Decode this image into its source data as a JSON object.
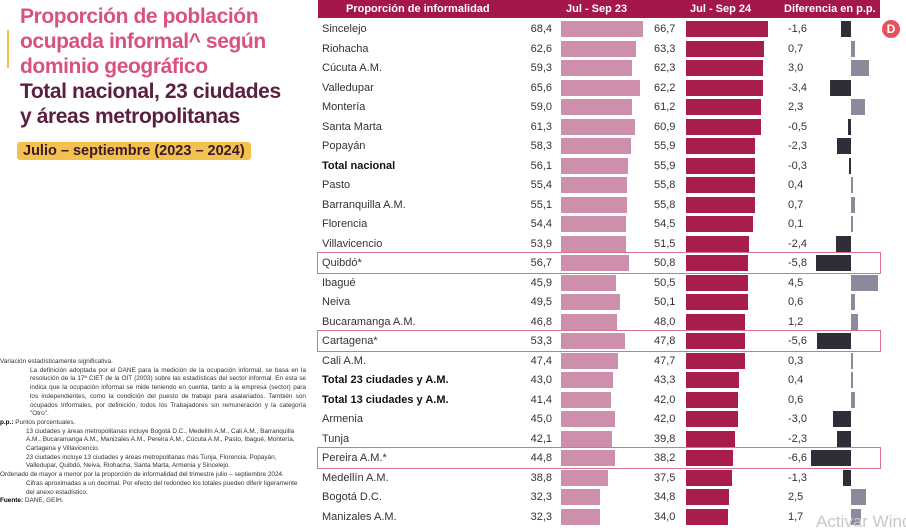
{
  "title": {
    "line1": "Proporción de población",
    "line2": "ocupada informal^ según",
    "line3": "dominio geográfico",
    "line4": "Total nacional, 23 ciudades",
    "line5": "y áreas metropolitanas",
    "period": "Julio – septiembre (2023 – 2024)"
  },
  "notes": [
    "Variación estadísticamente significativa.",
    "La definición adoptada por el DANE para la medición de la ocupación informal, se basa en la resolución de la 17ª CIET de la OIT (2003) sobre las estadísticas del sector informal. En esta se indica que la ocupación informal se mide teniendo en cuenta, tanto a la empresa (sector) para los independientes, como la condición del puesto de trabajo para asalariados. También son ocupados Informales, por definición, todos los Trabajadores sin remuneración y la categoría \"Otro\".",
    "Puntos porcentuales.",
    "13 ciudades y áreas metropolitanas incluye Bogotá D.C., Medellín A.M., Cali A.M., Barranquilla A.M., Bucaramanga A.M., Manizales A.M., Pereira A.M., Cúcuta A.M., Pasto, Ibagué, Montería, Cartagena y Villavicencio.",
    "23 ciudades incluye 13 ciudades y áreas metropolitanas más Tunja, Florencia, Popayán, Valledupar, Quibdó, Neiva, Riohacha, Santa Marta, Armenia y Sincelejo.",
    "Ordenado de mayor a menor por la proporción de informalidad del trimestre julio – septiembre 2024.",
    "Cifras aproximadas a un decimal. Por efecto del redondeo los totales pueden diferir ligeramente del anexo estadístico.",
    "DANE, GEIH."
  ],
  "notes_labels": {
    "pp": "p.p.:",
    "source": "Fuente:"
  },
  "logo_letter": "D",
  "watermark": "Activar Windows",
  "colors": {
    "header": "#a3174b",
    "bar23": "#cd8fac",
    "bar24": "#a81d4b",
    "neg": "#2e2e38",
    "pos": "#8a8a9c",
    "highlight": "#d9728f"
  },
  "chart_data": {
    "type": "table",
    "headers": [
      "Proporción de informalidad",
      "Jul - Sep 23",
      "Jul - Sep 24",
      "Diferencia en p.p."
    ],
    "rows": [
      {
        "name": "Sincelejo",
        "v23": 68.4,
        "v24": 66.7,
        "diff": -1.6
      },
      {
        "name": "Riohacha",
        "v23": 62.6,
        "v24": 63.3,
        "diff": 0.7
      },
      {
        "name": "Cúcuta A.M.",
        "v23": 59.3,
        "v24": 62.3,
        "diff": 3.0
      },
      {
        "name": "Valledupar",
        "v23": 65.6,
        "v24": 62.2,
        "diff": -3.4
      },
      {
        "name": "Montería",
        "v23": 59.0,
        "v24": 61.2,
        "diff": 2.3
      },
      {
        "name": "Santa Marta",
        "v23": 61.3,
        "v24": 60.9,
        "diff": -0.5
      },
      {
        "name": "Popayán",
        "v23": 58.3,
        "v24": 55.9,
        "diff": -2.3
      },
      {
        "name": "Total nacional",
        "v23": 56.1,
        "v24": 55.9,
        "diff": -0.3,
        "bold": true
      },
      {
        "name": "Pasto",
        "v23": 55.4,
        "v24": 55.8,
        "diff": 0.4
      },
      {
        "name": "Barranquilla A.M.",
        "v23": 55.1,
        "v24": 55.8,
        "diff": 0.7
      },
      {
        "name": "Florencia",
        "v23": 54.4,
        "v24": 54.5,
        "diff": 0.1
      },
      {
        "name": "Villavicencio",
        "v23": 53.9,
        "v24": 51.5,
        "diff": -2.4
      },
      {
        "name": "Quibdó*",
        "v23": 56.7,
        "v24": 50.8,
        "diff": -5.8,
        "highlight": true
      },
      {
        "name": "Ibagué",
        "v23": 45.9,
        "v24": 50.5,
        "diff": 4.5
      },
      {
        "name": "Neiva",
        "v23": 49.5,
        "v24": 50.1,
        "diff": 0.6
      },
      {
        "name": "Bucaramanga A.M.",
        "v23": 46.8,
        "v24": 48.0,
        "diff": 1.2
      },
      {
        "name": "Cartagena*",
        "v23": 53.3,
        "v24": 47.8,
        "diff": -5.6,
        "highlight": true
      },
      {
        "name": "Cali A.M.",
        "v23": 47.4,
        "v24": 47.7,
        "diff": 0.3
      },
      {
        "name": "Total 23 ciudades y A.M.",
        "v23": 43.0,
        "v24": 43.3,
        "diff": 0.4,
        "bold": true
      },
      {
        "name": "Total 13 ciudades y A.M.",
        "v23": 41.4,
        "v24": 42.0,
        "diff": 0.6,
        "bold": true
      },
      {
        "name": "Armenia",
        "v23": 45.0,
        "v24": 42.0,
        "diff": -3.0
      },
      {
        "name": "Tunja",
        "v23": 42.1,
        "v24": 39.8,
        "diff": -2.3
      },
      {
        "name": "Pereira A.M.*",
        "v23": 44.8,
        "v24": 38.2,
        "diff": -6.6,
        "highlight": true
      },
      {
        "name": "Medellín A.M.",
        "v23": 38.8,
        "v24": 37.5,
        "diff": -1.3
      },
      {
        "name": "Bogotá D.C.",
        "v23": 32.3,
        "v24": 34.8,
        "diff": 2.5
      },
      {
        "name": "Manizales A.M.",
        "v23": 32.3,
        "v24": 34.0,
        "diff": 1.7
      }
    ]
  }
}
